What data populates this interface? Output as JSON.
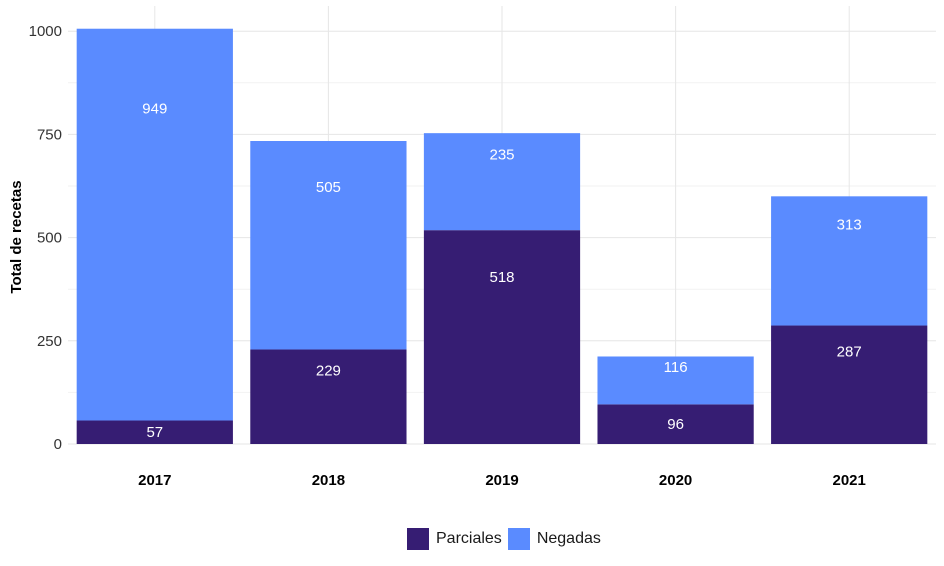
{
  "chart_data": {
    "type": "bar",
    "stacked": true,
    "categories": [
      "2017",
      "2018",
      "2019",
      "2020",
      "2021"
    ],
    "series": [
      {
        "name": "Parciales",
        "values": [
          57,
          229,
          518,
          96,
          287
        ],
        "color": "#361d73"
      },
      {
        "name": "Negadas",
        "values": [
          949,
          505,
          235,
          116,
          313
        ],
        "color": "#5a8bff"
      }
    ],
    "ylabel": "Total de recetas",
    "xlabel": "",
    "ylim": [
      0,
      1050
    ],
    "yticks": [
      0,
      250,
      500,
      750,
      1000
    ],
    "grid": true,
    "legend_position": "bottom"
  }
}
